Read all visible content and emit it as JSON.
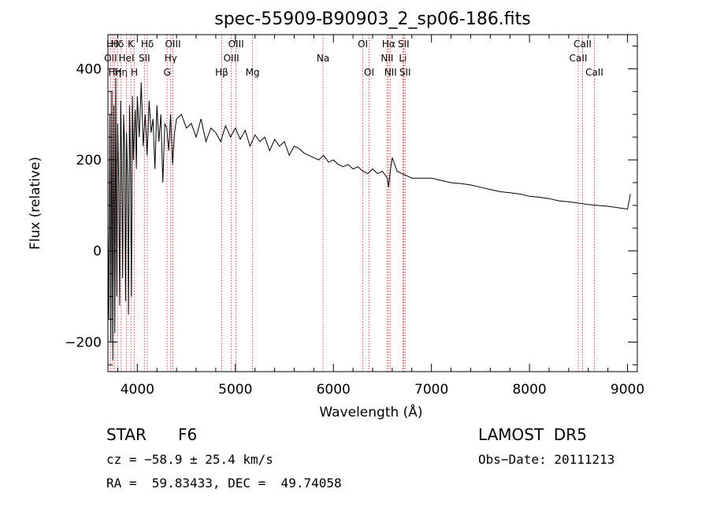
{
  "chart_data": {
    "type": "line",
    "title": "spec-55909-B90903_2_sp06-186.fits",
    "xlabel": "Wavelength (Å)",
    "ylabel": "Flux (relative)",
    "xlim": [
      3700,
      9100
    ],
    "ylim": [
      -265,
      475
    ],
    "x_ticks": [
      4000,
      5000,
      6000,
      7000,
      8000,
      9000
    ],
    "y_ticks": [
      -200,
      0,
      200,
      400
    ],
    "x_tick_labels": [
      "4000",
      "5000",
      "6000",
      "7000",
      "8000",
      "9000"
    ],
    "y_tick_labels": [
      "−200",
      "0",
      "200",
      "400"
    ],
    "line_color": "#000000",
    "marker_color": "#cc2222",
    "grid": false,
    "series": [
      {
        "values_description_omitted": true,
        "x": [
          3700,
          3710,
          3720,
          3730,
          3740,
          3750,
          3760,
          3770,
          3780,
          3790,
          3800,
          3810,
          3820,
          3830,
          3840,
          3850,
          3860,
          3870,
          3880,
          3890,
          3900,
          3910,
          3920,
          3930,
          3940,
          3950,
          3960,
          3970,
          3980,
          3990,
          4000,
          4020,
          4040,
          4060,
          4080,
          4100,
          4120,
          4140,
          4160,
          4180,
          4200,
          4220,
          4240,
          4260,
          4280,
          4300,
          4320,
          4340,
          4360,
          4380,
          4400,
          4450,
          4500,
          4550,
          4600,
          4650,
          4700,
          4750,
          4800,
          4850,
          4900,
          4950,
          5000,
          5050,
          5100,
          5150,
          5200,
          5250,
          5300,
          5350,
          5400,
          5450,
          5500,
          5550,
          5600,
          5650,
          5700,
          5750,
          5800,
          5850,
          5900,
          5950,
          6000,
          6050,
          6100,
          6150,
          6200,
          6250,
          6300,
          6350,
          6400,
          6450,
          6500,
          6550,
          6563,
          6580,
          6600,
          6650,
          6700,
          6750,
          6800,
          6900,
          7000,
          7100,
          7200,
          7300,
          7400,
          7500,
          7600,
          7700,
          7800,
          7900,
          8000,
          8100,
          8200,
          8300,
          8400,
          8500,
          8600,
          8700,
          8800,
          8900,
          9000,
          9030
        ],
        "y": [
          50,
          -150,
          300,
          -200,
          350,
          -240,
          320,
          -180,
          380,
          -100,
          280,
          150,
          -120,
          330,
          200,
          -60,
          300,
          230,
          -110,
          260,
          160,
          -140,
          320,
          190,
          -100,
          340,
          200,
          260,
          310,
          180,
          340,
          250,
          370,
          230,
          300,
          210,
          330,
          260,
          290,
          180,
          320,
          240,
          300,
          150,
          280,
          270,
          220,
          300,
          190,
          260,
          290,
          300,
          270,
          280,
          250,
          290,
          240,
          270,
          260,
          240,
          275,
          250,
          270,
          245,
          265,
          230,
          255,
          240,
          250,
          220,
          245,
          230,
          240,
          210,
          230,
          225,
          215,
          210,
          205,
          200,
          210,
          195,
          200,
          190,
          185,
          190,
          180,
          185,
          175,
          170,
          180,
          170,
          175,
          160,
          140,
          175,
          205,
          175,
          170,
          165,
          160,
          160,
          160,
          155,
          150,
          148,
          145,
          140,
          135,
          130,
          128,
          125,
          120,
          118,
          115,
          110,
          108,
          105,
          102,
          100,
          98,
          95,
          92,
          125
        ]
      }
    ],
    "line_markers": [
      {
        "x": 3727,
        "row": 1,
        "label": "OII"
      },
      {
        "x": 3750,
        "row": 0,
        "label": "Hθ"
      },
      {
        "x": 3770,
        "row": 2,
        "label": "Hη"
      },
      {
        "x": 3798,
        "row": 0,
        "label": "Hδ"
      },
      {
        "x": 3835,
        "row": 2,
        "label": "Hη"
      },
      {
        "x": 3889,
        "row": 1,
        "label": "HeI"
      },
      {
        "x": 3934,
        "row": 0,
        "label": "K"
      },
      {
        "x": 3969,
        "row": 2,
        "label": "H"
      },
      {
        "x": 4072,
        "row": 1,
        "label": "SII"
      },
      {
        "x": 4102,
        "row": 0,
        "label": "Hδ"
      },
      {
        "x": 4304,
        "row": 2,
        "label": "G"
      },
      {
        "x": 4341,
        "row": 1,
        "label": "Hγ"
      },
      {
        "x": 4363,
        "row": 0,
        "label": "OIII"
      },
      {
        "x": 4861,
        "row": 2,
        "label": "Hβ"
      },
      {
        "x": 4959,
        "row": 1,
        "label": "OIII"
      },
      {
        "x": 5007,
        "row": 0,
        "label": "OIII"
      },
      {
        "x": 5175,
        "row": 2,
        "label": "Mg"
      },
      {
        "x": 5894,
        "row": 1,
        "label": "Na"
      },
      {
        "x": 6300,
        "row": 0,
        "label": "OI"
      },
      {
        "x": 6364,
        "row": 2,
        "label": "OI"
      },
      {
        "x": 6548,
        "row": 1,
        "label": "NII"
      },
      {
        "x": 6563,
        "row": 0,
        "label": "Hα"
      },
      {
        "x": 6583,
        "row": 2,
        "label": "NII"
      },
      {
        "x": 6708,
        "row": 1,
        "label": "Li"
      },
      {
        "x": 6716,
        "row": 0,
        "label": "SII"
      },
      {
        "x": 6731,
        "row": 2,
        "label": "SII"
      },
      {
        "x": 8498,
        "row": 1,
        "label": "CaII"
      },
      {
        "x": 8542,
        "row": 0,
        "label": "CaII"
      },
      {
        "x": 8662,
        "row": 2,
        "label": "CaII"
      }
    ]
  },
  "info": {
    "class_label": "STAR",
    "subclass": "F6",
    "survey": "LAMOST  DR5",
    "cz": "cz = −58.9 ± 25.4 km/s",
    "obs_date": "Obs−Date: 20111213",
    "coords": "RA =  59.83433, DEC =  49.74058"
  }
}
